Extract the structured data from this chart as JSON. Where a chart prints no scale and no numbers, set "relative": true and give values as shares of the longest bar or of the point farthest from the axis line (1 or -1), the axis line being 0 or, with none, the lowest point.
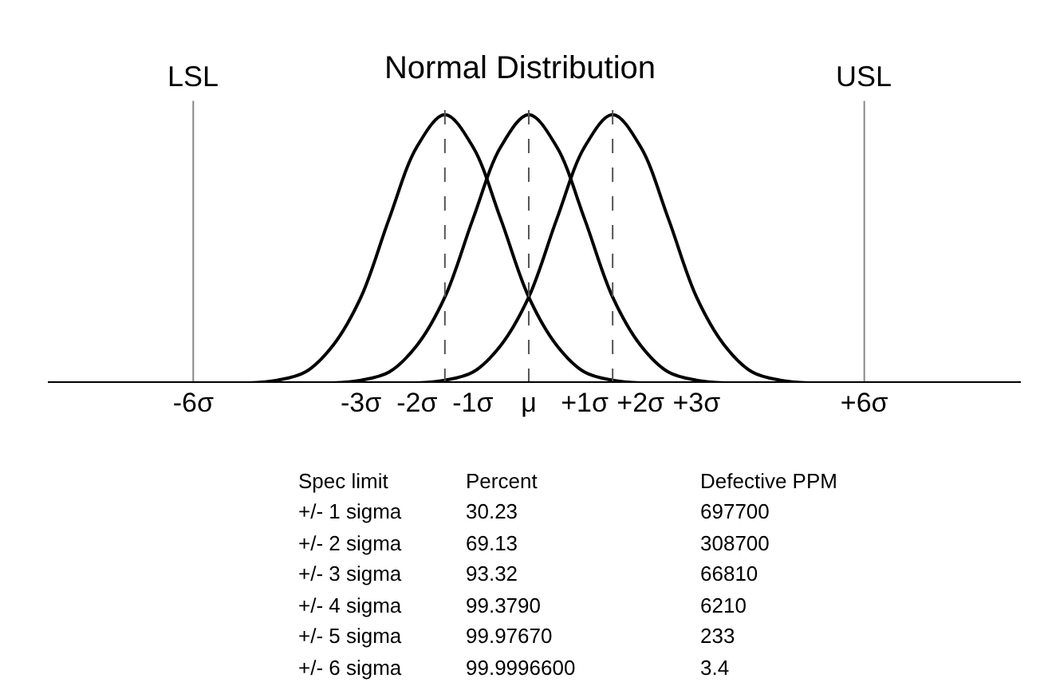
{
  "chart_data": {
    "type": "line",
    "title": "Normal Distribution",
    "relative": true,
    "grid": false,
    "marker": "none",
    "line_style": "solid",
    "xlim": [
      -8.6,
      8.8
    ],
    "xticks": [
      {
        "value": -6,
        "label": "-6σ"
      },
      {
        "value": -3,
        "label": "-3σ"
      },
      {
        "value": -2,
        "label": "-2σ"
      },
      {
        "value": -1,
        "label": "-1σ"
      },
      {
        "value": 0,
        "label": "μ"
      },
      {
        "value": 1,
        "label": "+1σ"
      },
      {
        "value": 2,
        "label": "+2σ"
      },
      {
        "value": 3,
        "label": "+3σ"
      },
      {
        "value": 6,
        "label": "+6σ"
      }
    ],
    "series": [
      {
        "color": "#000000",
        "x": [
          -5.5,
          -5,
          -4.5,
          -4,
          -3.5,
          -3,
          -2.5,
          -2,
          -1.5,
          -1,
          -0.5,
          0,
          0.5,
          1,
          1.5,
          2,
          2.5
        ],
        "values": [
          0,
          0,
          0.01,
          0.04,
          0.14,
          0.32,
          0.61,
          0.88,
          1,
          0.88,
          0.61,
          0.32,
          0.14,
          0.04,
          0.01,
          0,
          0
        ]
      },
      {
        "color": "#000000",
        "x": [
          -4,
          -3.5,
          -3,
          -2.5,
          -2,
          -1.5,
          -1,
          -0.5,
          0,
          0.5,
          1,
          1.5,
          2,
          2.5,
          3,
          3.5,
          4
        ],
        "values": [
          0,
          0,
          0.01,
          0.04,
          0.14,
          0.32,
          0.61,
          0.88,
          1,
          0.88,
          0.61,
          0.32,
          0.14,
          0.04,
          0.01,
          0,
          0
        ]
      },
      {
        "color": "#000000",
        "x": [
          -2.5,
          -2,
          -1.5,
          -1,
          -0.5,
          0,
          0.5,
          1,
          1.5,
          2,
          2.5,
          3,
          3.5,
          4,
          4.5,
          5,
          5.5
        ],
        "values": [
          0,
          0,
          0.01,
          0.04,
          0.14,
          0.32,
          0.61,
          0.88,
          1,
          0.88,
          0.61,
          0.32,
          0.14,
          0.04,
          0.01,
          0,
          0
        ]
      }
    ],
    "ref_lines": [
      {
        "axis": "x",
        "value": -6,
        "label": "LSL",
        "color": "#888888",
        "line_style": "solid"
      },
      {
        "axis": "x",
        "value": 6,
        "label": "USL",
        "color": "#888888",
        "line_style": "solid"
      },
      {
        "axis": "x",
        "value": -1.5,
        "color": "#555555",
        "line_style": "dashed"
      },
      {
        "axis": "x",
        "value": 0,
        "color": "#555555",
        "line_style": "dashed"
      },
      {
        "axis": "x",
        "value": 1.5,
        "color": "#555555",
        "line_style": "dashed"
      }
    ],
    "annotations": [
      "Spec limit",
      "Percent",
      "Defective PPM",
      "+/- 1 sigma",
      "30.23",
      "697700",
      "+/- 2 sigma",
      "69.13",
      "308700",
      "+/- 3 sigma",
      "93.32",
      "66810",
      "+/- 4 sigma",
      "99.3790",
      "6210",
      "+/- 5 sigma",
      "99.97670",
      "233",
      "+/- 6 sigma",
      "99.9996600",
      "3.4"
    ]
  }
}
